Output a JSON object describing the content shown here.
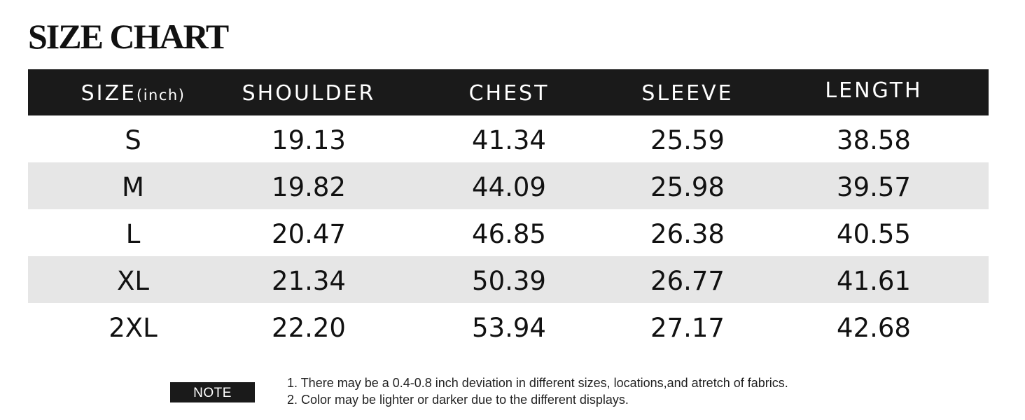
{
  "title": "SIZE CHART",
  "table": {
    "headers": [
      {
        "label": "SIZE",
        "unit": "(inch)"
      },
      {
        "label": "SHOULDER"
      },
      {
        "label": "CHEST"
      },
      {
        "label": "SLEEVE"
      },
      {
        "label": "LENGTH"
      }
    ],
    "rows": [
      [
        "S",
        "19.13",
        "41.34",
        "25.59",
        "38.58"
      ],
      [
        "M",
        "19.82",
        "44.09",
        "25.98",
        "39.57"
      ],
      [
        "L",
        "20.47",
        "46.85",
        "26.38",
        "40.55"
      ],
      [
        "XL",
        "21.34",
        "50.39",
        "26.77",
        "41.61"
      ],
      [
        "2XL",
        "22.20",
        "53.94",
        "27.17",
        "42.68"
      ]
    ]
  },
  "note": {
    "badge": "NOTE",
    "lines": [
      "1. There may be a 0.4-0.8 inch deviation in different sizes, locations,and atretch of fabrics.",
      "2. Color may be lighter or darker due to the different displays."
    ]
  },
  "colors": {
    "header_bg": "#1a1a1a",
    "row_shade": "#e6e6e6",
    "text": "#111111"
  }
}
